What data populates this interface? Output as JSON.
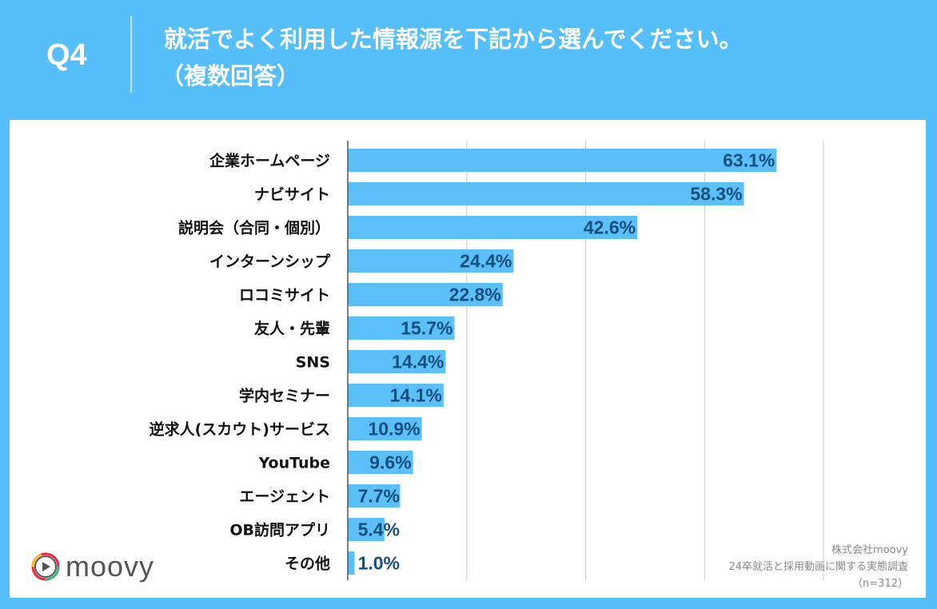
{
  "header": {
    "question_no": "Q4",
    "title_line1": "就活でよく利用した情報源を下記から選んでください。",
    "title_line2": "（複数回答）"
  },
  "chart_data": {
    "type": "bar",
    "orientation": "horizontal",
    "categories": [
      "企業ホームページ",
      "ナビサイト",
      "説明会（合同・個別）",
      "インターンシップ",
      "ロコミサイト",
      "友人・先輩",
      "SNS",
      "学内セミナー",
      "逆求人(スカウト)サービス",
      "YouTube",
      "エージェント",
      "OB訪問アプリ",
      "その他"
    ],
    "values": [
      63.1,
      58.3,
      42.6,
      24.4,
      22.8,
      15.7,
      14.4,
      14.1,
      10.9,
      9.6,
      7.7,
      5.4,
      1.0
    ],
    "data_labels": [
      "63.1%",
      "58.3%",
      "42.6%",
      "24.4%",
      "22.8%",
      "15.7%",
      "14.4%",
      "14.1%",
      "10.9%",
      "9.6%",
      "7.7%",
      "5.4%",
      "1.0%"
    ],
    "xlim": [
      0,
      70
    ],
    "grid": true,
    "bar_color": "#5bc0f8",
    "label_color": "#174e7c"
  },
  "footer": {
    "logo_text": "moovy",
    "source_company": "株式会社moovy",
    "source_survey": "24卒就活と採用動画に関する実態調査",
    "sample": "（n=312）"
  },
  "colors": {
    "background": "#56bef8",
    "panel": "#ffffff"
  }
}
